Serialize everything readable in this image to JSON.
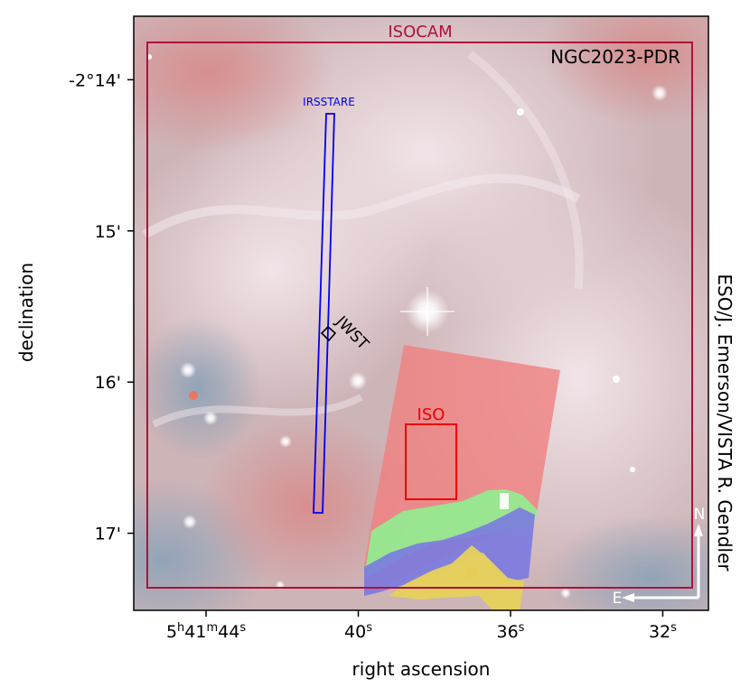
{
  "chart_data": {
    "type": "image",
    "title": "NGC2023-PDR",
    "xlabel": "right ascension",
    "ylabel": "declination",
    "credit": "ESO/J. Emerson/VISTA R. Gendler",
    "xticks": [
      {
        "label": "5h41m44s",
        "ra_s": 44
      },
      {
        "label": "40s",
        "ra_s": 40
      },
      {
        "label": "36s",
        "ra_s": 36
      },
      {
        "label": "32s",
        "ra_s": 32
      }
    ],
    "yticks": [
      {
        "label": "-2°14'",
        "dec_arcmin": -14
      },
      {
        "label": "15'",
        "dec_arcmin": -15
      },
      {
        "label": "16'",
        "dec_arcmin": -16
      },
      {
        "label": "17'",
        "dec_arcmin": -17
      }
    ],
    "xlim_ra_s": [
      45.9,
      30.8
    ],
    "ylim_dec_arcmin": [
      -17.51,
      -13.58
    ],
    "footprints": [
      {
        "name": "ISOCAM",
        "color": "#b0103a"
      },
      {
        "name": "IRSSTARE",
        "color": "#0000ee"
      },
      {
        "name": "JWST",
        "color": "#000000"
      },
      {
        "name": "ISO",
        "color": "#ee0000"
      }
    ],
    "coverage_map_colors": {
      "red": "#f08080",
      "green": "#90ee90",
      "blue": "#7a7ae0",
      "yellow": "#e6d15a"
    },
    "compass": {
      "north": "N",
      "east": "E"
    }
  }
}
